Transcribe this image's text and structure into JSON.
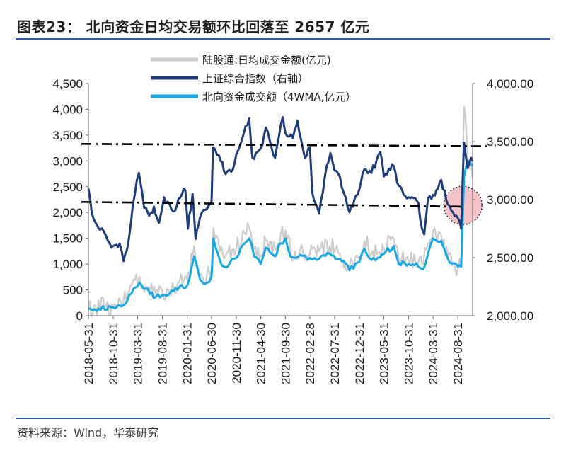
{
  "header": {
    "title": "图表23：  北向资金日均交易额环比回落至 2657 亿元"
  },
  "footer": {
    "source": "资料来源：Wind，华泰研究"
  },
  "chart_data": {
    "type": "line",
    "title": "北向资金日均交易额环比回落至 2657 亿元",
    "legend": [
      "陆股通:日均成交金额(亿元)",
      "上证综合指数（右轴）",
      "北向资金成交额（4WMA,亿元）"
    ],
    "legend_position": "top-center",
    "colors": {
      "daily": "#cccccc",
      "index": "#1f3d7a",
      "wma": "#17a9e6",
      "ref": "#000000",
      "circle_fill": "#f2b8c0"
    },
    "y_left": {
      "min": 0,
      "max": 4500,
      "ticks": [
        "0",
        "500",
        "1,000",
        "1,500",
        "2,000",
        "2,500",
        "3,000",
        "3,500",
        "4,000",
        "4,500"
      ]
    },
    "y_right": {
      "min": 2000,
      "max": 4000,
      "ticks": [
        "2,000.00",
        "2,500.00",
        "3,000.00",
        "3,500.00",
        "4,000.00"
      ]
    },
    "x_ticks": [
      "2018-05-31",
      "2018-10-31",
      "2019-03-31",
      "2019-08-31",
      "2020-01-31",
      "2020-06-30",
      "2020-11-30",
      "2021-04-30",
      "2021-09-30",
      "2022-02-28",
      "2022-07-31",
      "2022-12-31",
      "2023-05-31",
      "2023-10-31",
      "2024-03-31",
      "2024-08-31"
    ],
    "x_start": "2018-05-31",
    "x_end": "2024-11-30",
    "series": [
      {
        "name": "上证综合指数（右轴）",
        "axis": "right",
        "points": [
          [
            "2018-05-31",
            3095
          ],
          [
            "2018-06-20",
            2890
          ],
          [
            "2018-07-15",
            2800
          ],
          [
            "2018-08-10",
            2740
          ],
          [
            "2018-09-05",
            2720
          ],
          [
            "2018-10-10",
            2620
          ],
          [
            "2018-10-31",
            2600
          ],
          [
            "2018-12-10",
            2620
          ],
          [
            "2019-01-03",
            2470
          ],
          [
            "2019-02-01",
            2620
          ],
          [
            "2019-03-01",
            2950
          ],
          [
            "2019-04-08",
            3230
          ],
          [
            "2019-05-10",
            2930
          ],
          [
            "2019-06-10",
            2860
          ],
          [
            "2019-07-10",
            2940
          ],
          [
            "2019-08-10",
            2800
          ],
          [
            "2019-09-10",
            3020
          ],
          [
            "2019-10-15",
            2960
          ],
          [
            "2019-11-15",
            2900
          ],
          [
            "2019-12-31",
            3050
          ],
          [
            "2020-01-20",
            3080
          ],
          [
            "2020-02-05",
            2750
          ],
          [
            "2020-03-05",
            3050
          ],
          [
            "2020-03-23",
            2660
          ],
          [
            "2020-04-20",
            2850
          ],
          [
            "2020-06-01",
            2920
          ],
          [
            "2020-06-30",
            2980
          ],
          [
            "2020-07-09",
            3450
          ],
          [
            "2020-08-15",
            3380
          ],
          [
            "2020-09-25",
            3220
          ],
          [
            "2020-10-30",
            3240
          ],
          [
            "2020-11-30",
            3390
          ],
          [
            "2021-01-15",
            3570
          ],
          [
            "2021-02-18",
            3700
          ],
          [
            "2021-03-10",
            3360
          ],
          [
            "2021-04-30",
            3440
          ],
          [
            "2021-06-01",
            3620
          ],
          [
            "2021-07-28",
            3360
          ],
          [
            "2021-09-13",
            3710
          ],
          [
            "2021-09-30",
            3570
          ],
          [
            "2021-11-15",
            3530
          ],
          [
            "2021-12-13",
            3680
          ],
          [
            "2022-01-28",
            3360
          ],
          [
            "2022-02-28",
            3450
          ],
          [
            "2022-03-15",
            3060
          ],
          [
            "2022-04-26",
            2880
          ],
          [
            "2022-05-31",
            3190
          ],
          [
            "2022-07-05",
            3400
          ],
          [
            "2022-07-31",
            3250
          ],
          [
            "2022-09-01",
            3200
          ],
          [
            "2022-10-31",
            2890
          ],
          [
            "2022-12-31",
            3090
          ],
          [
            "2023-01-31",
            3260
          ],
          [
            "2023-03-15",
            3230
          ],
          [
            "2023-05-09",
            3410
          ],
          [
            "2023-05-31",
            3200
          ],
          [
            "2023-07-31",
            3290
          ],
          [
            "2023-08-31",
            3120
          ],
          [
            "2023-10-31",
            3020
          ],
          [
            "2023-12-31",
            2970
          ],
          [
            "2024-01-22",
            2750
          ],
          [
            "2024-02-05",
            2700
          ],
          [
            "2024-02-28",
            3010
          ],
          [
            "2024-03-31",
            3040
          ],
          [
            "2024-05-20",
            3170
          ],
          [
            "2024-06-30",
            2960
          ],
          [
            "2024-08-31",
            2840
          ],
          [
            "2024-09-20",
            2750
          ],
          [
            "2024-10-08",
            3490
          ],
          [
            "2024-10-30",
            3270
          ],
          [
            "2024-11-20",
            3360
          ],
          [
            "2024-11-30",
            3330
          ]
        ]
      },
      {
        "name": "北向资金成交额（4WMA,亿元）",
        "axis": "left",
        "points": [
          [
            "2018-05-31",
            130
          ],
          [
            "2018-08-01",
            140
          ],
          [
            "2018-10-31",
            160
          ],
          [
            "2019-01-01",
            200
          ],
          [
            "2019-03-05",
            520
          ],
          [
            "2019-04-10",
            640
          ],
          [
            "2019-05-20",
            520
          ],
          [
            "2019-06-15",
            420
          ],
          [
            "2019-07-20",
            360
          ],
          [
            "2019-08-31",
            400
          ],
          [
            "2019-10-15",
            430
          ],
          [
            "2019-12-15",
            560
          ],
          [
            "2020-01-31",
            580
          ],
          [
            "2020-03-15",
            1150
          ],
          [
            "2020-04-20",
            700
          ],
          [
            "2020-05-31",
            640
          ],
          [
            "2020-06-30",
            760
          ],
          [
            "2020-07-12",
            1500
          ],
          [
            "2020-08-20",
            1080
          ],
          [
            "2020-09-15",
            950
          ],
          [
            "2020-11-30",
            1120
          ],
          [
            "2021-01-20",
            1400
          ],
          [
            "2021-02-18",
            1500
          ],
          [
            "2021-03-20",
            1150
          ],
          [
            "2021-04-30",
            1000
          ],
          [
            "2021-06-01",
            1320
          ],
          [
            "2021-07-28",
            1150
          ],
          [
            "2021-08-31",
            1400
          ],
          [
            "2021-09-30",
            1500
          ],
          [
            "2021-10-31",
            1150
          ],
          [
            "2021-11-30",
            1120
          ],
          [
            "2021-12-31",
            1180
          ],
          [
            "2022-02-28",
            1120
          ],
          [
            "2022-04-26",
            1100
          ],
          [
            "2022-06-30",
            1200
          ],
          [
            "2022-09-01",
            1100
          ],
          [
            "2022-10-31",
            880
          ],
          [
            "2022-12-31",
            1050
          ],
          [
            "2023-01-31",
            1300
          ],
          [
            "2023-03-15",
            1080
          ],
          [
            "2023-05-31",
            1200
          ],
          [
            "2023-07-31",
            1350
          ],
          [
            "2023-08-31",
            1000
          ],
          [
            "2023-10-31",
            1000
          ],
          [
            "2023-12-31",
            950
          ],
          [
            "2024-01-31",
            900
          ],
          [
            "2024-02-28",
            1200
          ],
          [
            "2024-03-31",
            1500
          ],
          [
            "2024-05-20",
            1450
          ],
          [
            "2024-06-30",
            1100
          ],
          [
            "2024-08-31",
            950
          ],
          [
            "2024-09-20",
            950
          ],
          [
            "2024-10-08",
            2700
          ],
          [
            "2024-10-30",
            3000
          ],
          [
            "2024-11-30",
            2900
          ]
        ]
      },
      {
        "name": "陆股通:日均成交金额(亿元)",
        "axis": "left",
        "points": [
          [
            "2018-05-31",
            150
          ],
          [
            "2018-07-15",
            190
          ],
          [
            "2018-09-15",
            170
          ],
          [
            "2018-10-31",
            200
          ],
          [
            "2019-01-01",
            260
          ],
          [
            "2019-03-05",
            700
          ],
          [
            "2019-04-10",
            760
          ],
          [
            "2019-05-20",
            580
          ],
          [
            "2019-06-15",
            460
          ],
          [
            "2019-07-20",
            420
          ],
          [
            "2019-08-31",
            470
          ],
          [
            "2019-10-15",
            480
          ],
          [
            "2019-12-15",
            650
          ],
          [
            "2020-01-31",
            700
          ],
          [
            "2020-03-15",
            1350
          ],
          [
            "2020-04-20",
            820
          ],
          [
            "2020-05-31",
            760
          ],
          [
            "2020-06-30",
            900
          ],
          [
            "2020-07-12",
            1700
          ],
          [
            "2020-08-20",
            1250
          ],
          [
            "2020-09-15",
            1100
          ],
          [
            "2020-11-30",
            1300
          ],
          [
            "2021-01-20",
            1600
          ],
          [
            "2021-02-18",
            1700
          ],
          [
            "2021-03-20",
            1300
          ],
          [
            "2021-04-30",
            1150
          ],
          [
            "2021-06-01",
            1450
          ],
          [
            "2021-07-28",
            1300
          ],
          [
            "2021-08-31",
            1550
          ],
          [
            "2021-09-30",
            1650
          ],
          [
            "2021-10-31",
            1250
          ],
          [
            "2021-11-30",
            1250
          ],
          [
            "2021-12-31",
            1300
          ],
          [
            "2022-02-28",
            1200
          ],
          [
            "2022-04-26",
            1250
          ],
          [
            "2022-06-30",
            1350
          ],
          [
            "2022-09-01",
            1200
          ],
          [
            "2022-10-31",
            950
          ],
          [
            "2022-12-31",
            1150
          ],
          [
            "2023-01-31",
            1450
          ],
          [
            "2023-03-15",
            1200
          ],
          [
            "2023-05-31",
            1300
          ],
          [
            "2023-07-31",
            1500
          ],
          [
            "2023-08-31",
            1100
          ],
          [
            "2023-10-31",
            1050
          ],
          [
            "2023-12-31",
            1050
          ],
          [
            "2024-01-31",
            1000
          ],
          [
            "2024-02-28",
            1400
          ],
          [
            "2024-03-31",
            1650
          ],
          [
            "2024-05-20",
            1550
          ],
          [
            "2024-06-30",
            1150
          ],
          [
            "2024-08-31",
            900
          ],
          [
            "2024-09-20",
            1000
          ],
          [
            "2024-10-08",
            4050
          ],
          [
            "2024-10-30",
            3100
          ],
          [
            "2024-11-30",
            2657
          ]
        ]
      }
    ],
    "reference_lines": [
      {
        "axis": "right",
        "from": [
          "2018-05-31",
          3480
        ],
        "to": [
          "2024-11-30",
          3460
        ],
        "style": "dash-dot"
      },
      {
        "axis": "right",
        "from": [
          "2018-05-31",
          2980
        ],
        "to": [
          "2024-10-05",
          2940
        ],
        "style": "dash-dot"
      }
    ],
    "annotation": {
      "type": "dotted-circle",
      "center": [
        "2024-10-01",
        2950
      ],
      "axis": "right"
    }
  }
}
